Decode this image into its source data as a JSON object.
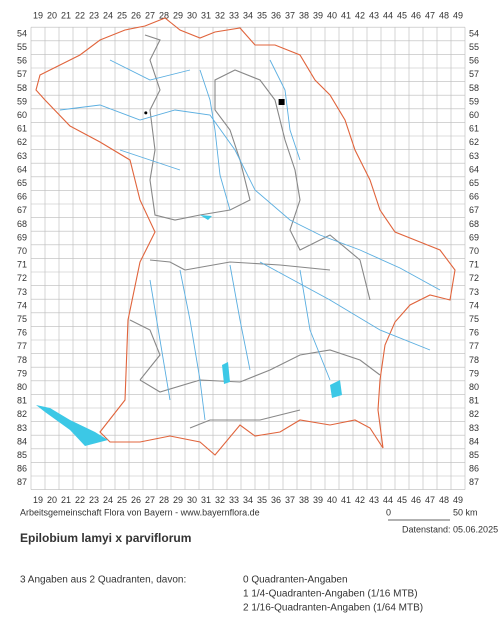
{
  "map": {
    "columns": [
      19,
      20,
      21,
      22,
      23,
      24,
      25,
      26,
      27,
      28,
      29,
      30,
      31,
      32,
      33,
      34,
      35,
      36,
      37,
      38,
      39,
      40,
      41,
      42,
      43,
      44,
      45,
      46,
      47,
      48,
      49
    ],
    "rows": [
      54,
      55,
      56,
      57,
      58,
      59,
      60,
      61,
      62,
      63,
      64,
      65,
      66,
      67,
      68,
      69,
      70,
      71,
      72,
      73,
      74,
      75,
      76,
      77,
      78,
      79,
      80,
      81,
      82,
      83,
      84,
      85,
      86,
      87
    ],
    "records": [
      {
        "x": 36.4,
        "y": 59,
        "symbol": "square"
      },
      {
        "x": 26.7,
        "y": 59.8,
        "symbol": "dot"
      }
    ]
  },
  "footer": {
    "credit": "Arbeitsgemeinschaft Flora von Bayern - www.bayernflora.de",
    "scale_start": "0",
    "scale_end": "50 km",
    "date": "Datenstand: 05.06.2025"
  },
  "title": "Epilobium lamyi x parviflorum",
  "summary": {
    "total": "3 Angaben aus 2 Quadranten, davon:",
    "lines": [
      "0 Quadranten-Angaben",
      "1 1/4-Quadranten-Angaben (1/16 MTB)",
      "2 1/16-Quadranten-Angaben (1/64 MTB)"
    ]
  }
}
